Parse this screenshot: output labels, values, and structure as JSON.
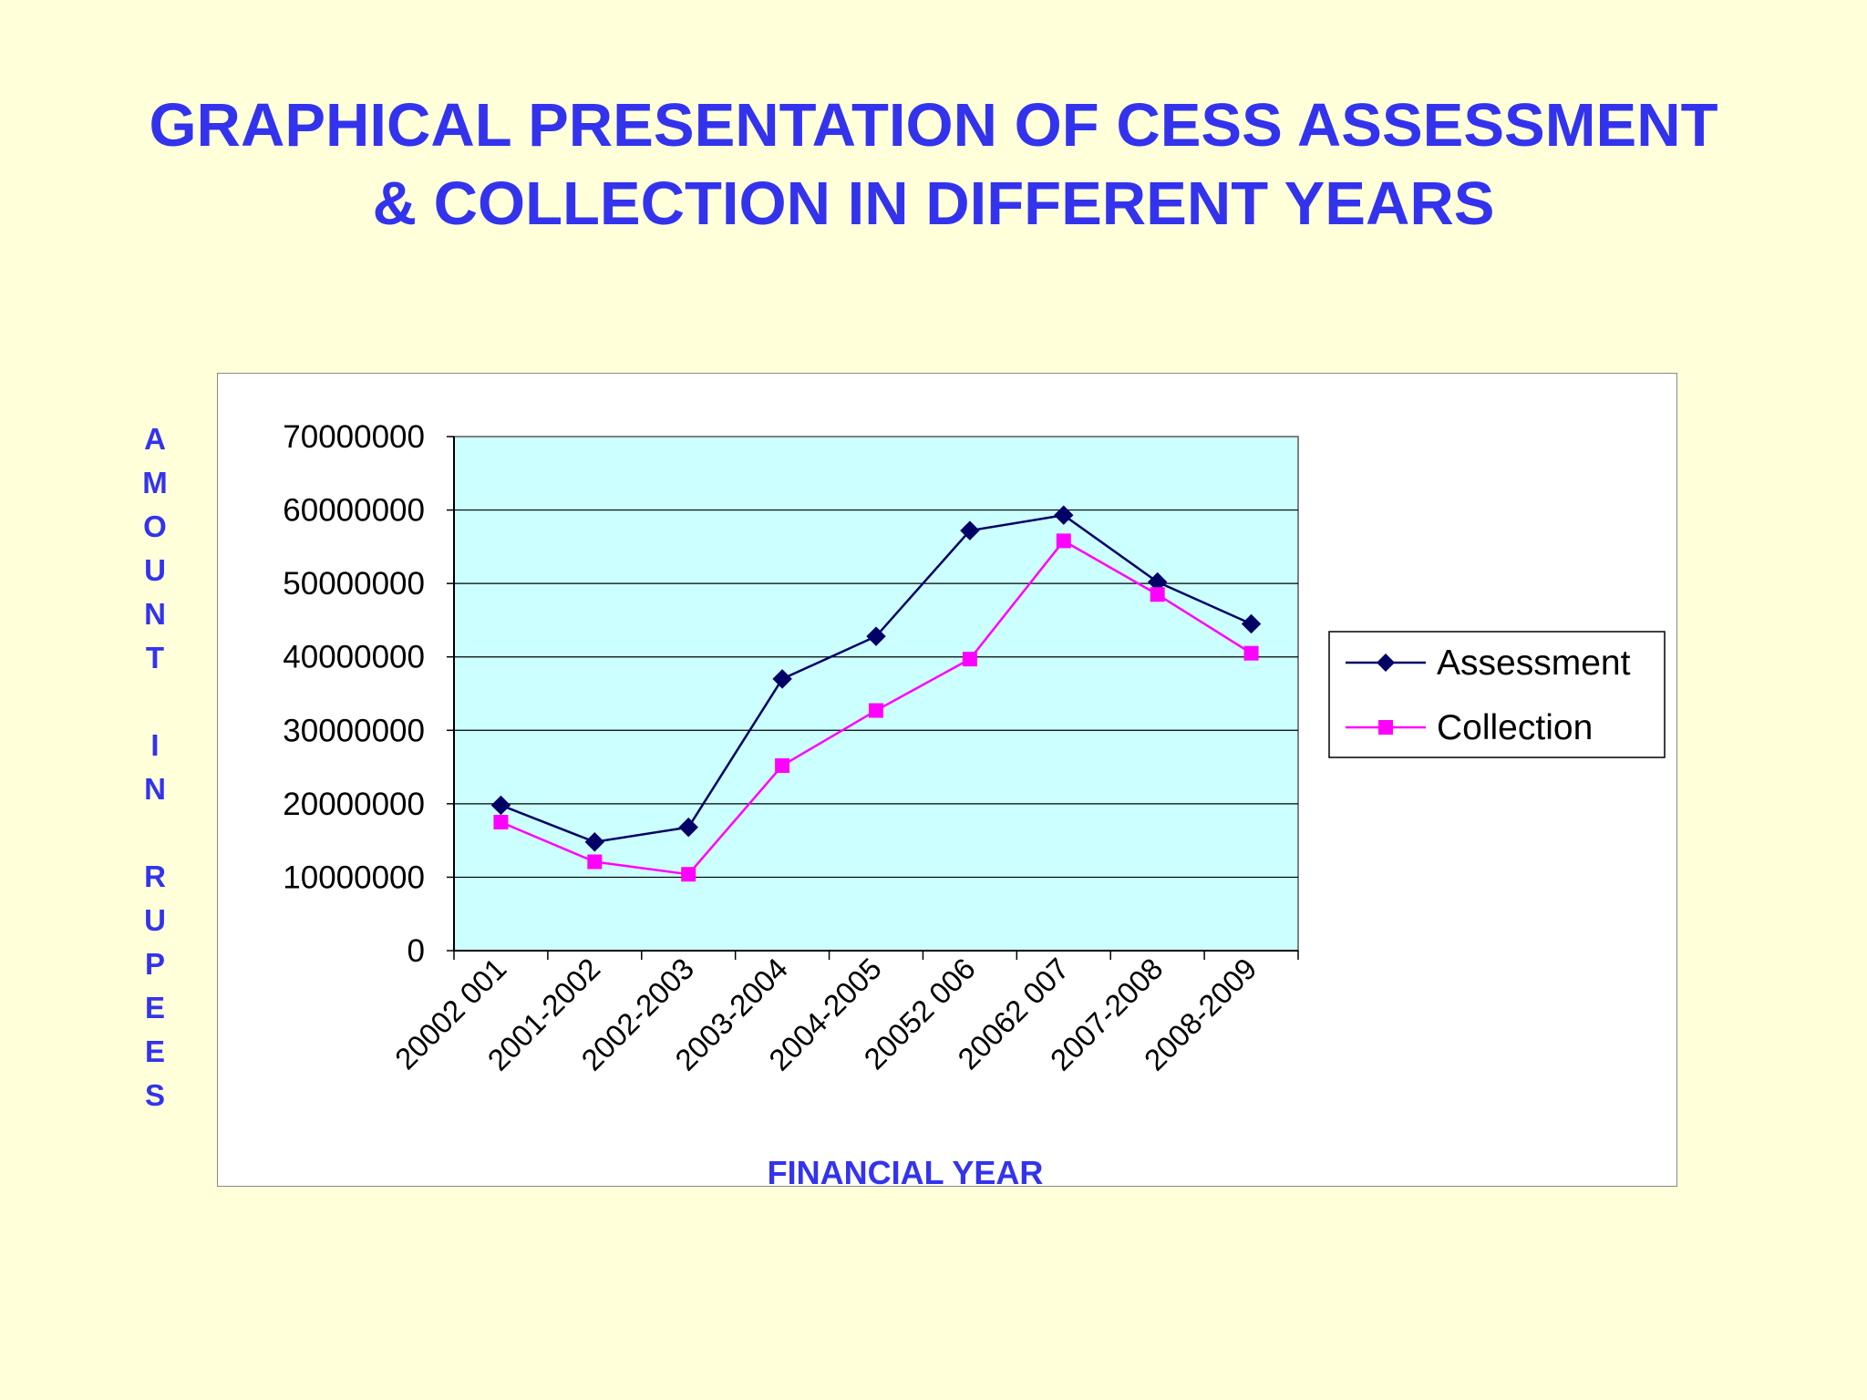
{
  "slide": {
    "title_line1": "GRAPHICAL PRESENTATION OF CESS ASSESSMENT",
    "title_line2": "& COLLECTION IN DIFFERENT YEARS"
  },
  "chart_data": {
    "type": "line",
    "title": "",
    "xlabel": "FINANCIAL YEAR",
    "ylabel": "AMOUNT IN RUPEES",
    "ylim": [
      0,
      70000000
    ],
    "yticks": [
      0,
      10000000,
      20000000,
      30000000,
      40000000,
      50000000,
      60000000,
      70000000
    ],
    "categories": [
      "20002 001",
      "2001-2002",
      "2002-2003",
      "2003-2004",
      "2004-2005",
      "20052 006",
      "20062 007",
      "2007-2008",
      "2008-2009"
    ],
    "series": [
      {
        "name": "Assessment",
        "color": "#000066",
        "marker": "diamond",
        "values": [
          19800000,
          14800000,
          16800000,
          37000000,
          42800000,
          57200000,
          59300000,
          50200000,
          44500000
        ]
      },
      {
        "name": "Collection",
        "color": "#ff00ff",
        "marker": "square",
        "values": [
          17500000,
          12100000,
          10400000,
          25200000,
          32700000,
          39700000,
          55800000,
          48500000,
          40500000
        ]
      }
    ],
    "plot_background": "#ccffff",
    "grid": true,
    "legend": "right"
  }
}
